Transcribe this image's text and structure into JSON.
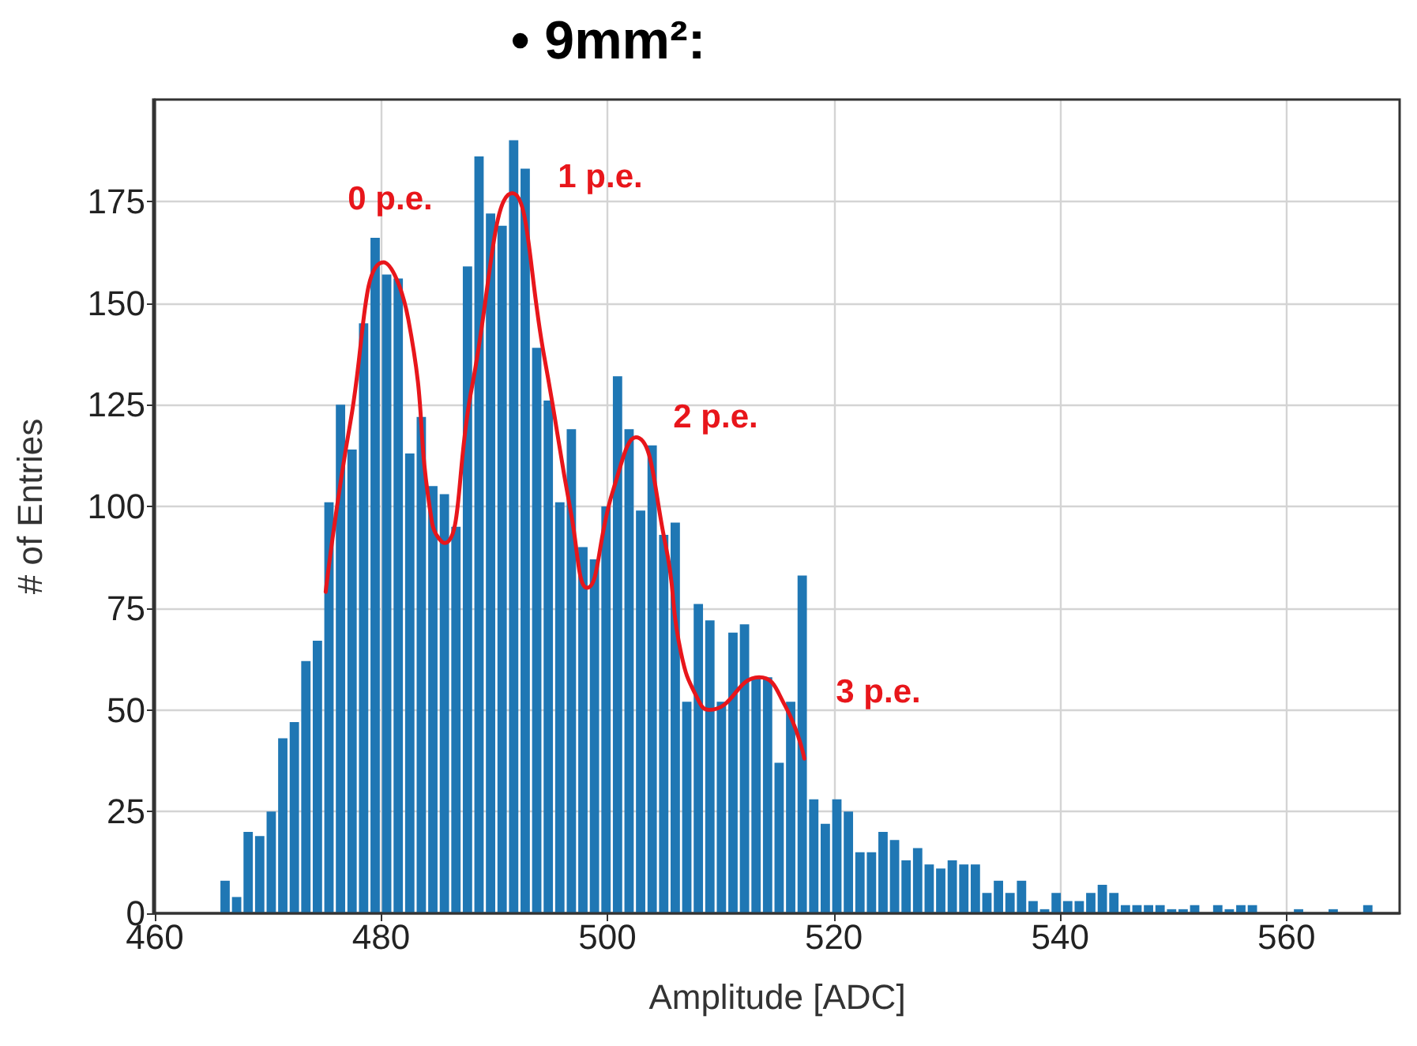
{
  "chart_data": {
    "type": "histogram",
    "title": "• 9mm²:",
    "xlabel": "Amplitude [ADC]",
    "ylabel": "# of Entries",
    "bins": [
      465.7,
      466.72,
      467.74,
      468.76,
      469.78,
      470.8,
      471.82,
      472.84,
      473.86,
      474.88,
      475.9,
      476.92,
      477.94,
      478.96,
      479.98,
      481,
      482.02,
      483.04,
      484.06,
      485.08,
      486.1,
      487.12,
      488.14,
      489.16,
      490.18,
      491.2,
      492.22,
      493.24,
      494.26,
      495.28,
      496.3,
      497.32,
      498.34,
      499.36,
      500.38,
      501.4,
      502.42,
      503.44,
      504.46,
      505.48,
      506.5,
      507.52,
      508.54,
      509.56,
      510.58,
      511.6,
      512.62,
      513.64,
      514.66,
      515.68,
      516.7,
      517.72,
      518.74,
      519.76,
      520.78,
      521.8,
      522.82,
      523.84,
      524.86,
      525.88,
      526.9,
      527.92,
      528.94,
      529.96,
      530.98,
      532,
      533.02,
      534.04,
      535.06,
      536.08,
      537.1,
      538.12,
      539.14,
      540.16,
      541.18,
      542.2,
      543.22,
      544.24,
      545.26,
      546.28,
      547.3,
      548.32,
      549.34,
      550.36,
      551.38,
      552.4,
      553.42,
      554.44,
      555.46,
      556.48,
      557.5,
      558.52,
      559.54,
      560.56,
      561.58,
      562.6,
      563.62,
      564.64,
      565.66,
      566.68,
      567.7
    ],
    "values": [
      8,
      4,
      20,
      19,
      25,
      43,
      47,
      62,
      67,
      101,
      125,
      114,
      145,
      166,
      157,
      156,
      113,
      122,
      105,
      103,
      95,
      159,
      186,
      172,
      169,
      190,
      183,
      139,
      126,
      101,
      119,
      90,
      87,
      100,
      132,
      119,
      99,
      115,
      93,
      96,
      52,
      76,
      72,
      52,
      69,
      71,
      58,
      58,
      37,
      52,
      83,
      28,
      22,
      28,
      25,
      15,
      15,
      20,
      18,
      13,
      16,
      12,
      11,
      13,
      12,
      12,
      5,
      8,
      5,
      8,
      3,
      1,
      5,
      3,
      3,
      5,
      7,
      5,
      2,
      2,
      2,
      2,
      1,
      1,
      2,
      0,
      2,
      1,
      2,
      2,
      0,
      0,
      0,
      1,
      0,
      0,
      1,
      0,
      0,
      2
    ],
    "color": "#1f77b4",
    "series": [
      {
        "type": "line",
        "color": "#e8161b",
        "x": [
          475.1,
          477.3,
          480.2,
          482.4,
          484.5,
          485.6,
          488,
          491.6,
          494.4,
          496.8,
          498.2,
          500.5,
          502.5,
          505.1,
          506.5,
          508.1,
          509,
          513.4,
          515.7,
          517.4
        ],
        "values": [
          79,
          121,
          160,
          146,
          96,
          91,
          129,
          177,
          137,
          98,
          80,
          104,
          117,
          91,
          64,
          52,
          50,
          58,
          51,
          38
        ]
      }
    ],
    "marker": "none",
    "xlim": [
      460,
      570
    ],
    "xticks": [
      460,
      480,
      500,
      520,
      540,
      560
    ],
    "ylim": [
      0,
      200
    ],
    "yticks": [
      0,
      25,
      50,
      75,
      100,
      125,
      150,
      175
    ],
    "grid": true,
    "annotations": [
      "0 p.e.",
      "1 p.e.",
      "2 p.e.",
      "3 p.e."
    ]
  }
}
